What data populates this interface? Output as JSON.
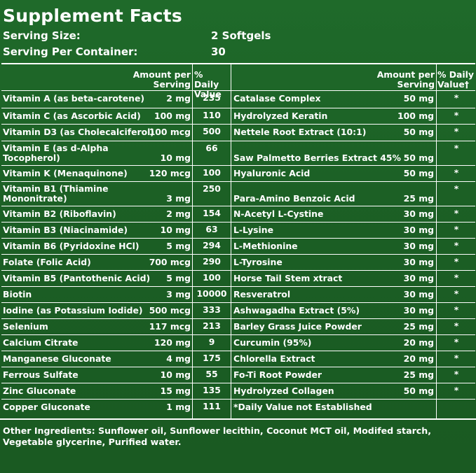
{
  "title": "Supplement Facts",
  "serving_size_label": "Serving Size:",
  "serving_size_value": "2 Softgels",
  "servings_label": "Serving Per Container:",
  "servings_value": "30",
  "left_header": {
    "amount": "Amount per Serving",
    "dv": "% Daily Value"
  },
  "right_header": {
    "amount": "Amount per Serving",
    "dv": "% Daily Value†"
  },
  "left_rows": [
    {
      "name": "Vitamin A (as beta-carotene)",
      "amount": "2 mg",
      "dv": "235"
    },
    {
      "name": "Vitamin C (as Ascorbic Acid)",
      "amount": "100 mg",
      "dv": "110"
    },
    {
      "name": "Vitamin D3 (as Cholecalciferol)",
      "amount": "100 mcg",
      "dv": "500"
    },
    {
      "name": "Vitamin E (as d-Alpha Tocopherol)",
      "amount": "10 mg",
      "dv": "66"
    },
    {
      "name": "Vitamin K (Menaquinone)",
      "amount": "120 mcg",
      "dv": "100"
    },
    {
      "name": "Vitamin B1 (Thiamine Mononitrate)",
      "amount": "3 mg",
      "dv": "250"
    },
    {
      "name": "Vitamin B2 (Riboflavin)",
      "amount": "2 mg",
      "dv": "154"
    },
    {
      "name": "Vitamin B3 (Niacinamide)",
      "amount": "10 mg",
      "dv": "63"
    },
    {
      "name": "Vitamin B6 (Pyridoxine HCl)",
      "amount": "5 mg",
      "dv": "294"
    },
    {
      "name": "Folate (Folic Acid)",
      "amount": "700 mcg",
      "dv": "290"
    },
    {
      "name": "Vitamin B5 (Pantothenic Acid)",
      "amount": "5 mg",
      "dv": "100"
    },
    {
      "name": "Biotin",
      "amount": "3 mg",
      "dv": "10000"
    },
    {
      "name": "Iodine (as Potassium Iodide)",
      "amount": "500 mcg",
      "dv": "333"
    },
    {
      "name": "Selenium",
      "amount": "117 mcg",
      "dv": "213"
    },
    {
      "name": "Calcium Citrate",
      "amount": "120 mg",
      "dv": "9"
    },
    {
      "name": "Manganese Gluconate",
      "amount": "4 mg",
      "dv": "175"
    },
    {
      "name": "Ferrous Sulfate",
      "amount": "10 mg",
      "dv": "55"
    },
    {
      "name": "Zinc Gluconate",
      "amount": "15 mg",
      "dv": "135"
    },
    {
      "name": "Copper Gluconate",
      "amount": "1 mg",
      "dv": "111"
    }
  ],
  "right_rows": [
    {
      "name": "Catalase Complex",
      "amount": "50 mg",
      "dv": "*"
    },
    {
      "name": "Hydrolyzed Keratin",
      "amount": "100 mg",
      "dv": "*"
    },
    {
      "name": "Nettele Root Extract (10:1)",
      "amount": "50 mg",
      "dv": "*"
    },
    {
      "name": "Saw Palmetto Berries Extract 45%",
      "amount": "50 mg",
      "dv": "*"
    },
    {
      "name": "Hyaluronic Acid",
      "amount": "50 mg",
      "dv": "*"
    },
    {
      "name": "Para-Amino Benzoic Acid",
      "amount": "25 mg",
      "dv": "*"
    },
    {
      "name": "N-Acetyl L-Cystine",
      "amount": "30 mg",
      "dv": "*"
    },
    {
      "name": "L-Lysine",
      "amount": "30 mg",
      "dv": "*"
    },
    {
      "name": "L-Methionine",
      "amount": "30 mg",
      "dv": "*"
    },
    {
      "name": "L-Tyrosine",
      "amount": "30 mg",
      "dv": "*"
    },
    {
      "name": "Horse Tail Stem xtract",
      "amount": "30 mg",
      "dv": "*"
    },
    {
      "name": "Resveratrol",
      "amount": "30 mg",
      "dv": "*"
    },
    {
      "name": "Ashwagadha Extract (5%)",
      "amount": "30 mg",
      "dv": "*"
    },
    {
      "name": "Barley Grass Juice Powder",
      "amount": "25 mg",
      "dv": "*"
    },
    {
      "name": "Curcumin (95%)",
      "amount": "20 mg",
      "dv": "*"
    },
    {
      "name": "Chlorella Extract",
      "amount": "20 mg",
      "dv": "*"
    },
    {
      "name": "Fo-Ti Root Powder",
      "amount": "25 mg",
      "dv": "*"
    },
    {
      "name": "Hydrolyzed Collagen",
      "amount": "50 mg",
      "dv": "*"
    },
    {
      "name": "*Daily Value not Established",
      "amount": "",
      "dv": ""
    }
  ],
  "other_ingredients": "Other Ingredients: Sunflower oil, Sunflower lecithin, Coconut MCT oil, Modifed starch, Vegetable glycerine, Purified water."
}
